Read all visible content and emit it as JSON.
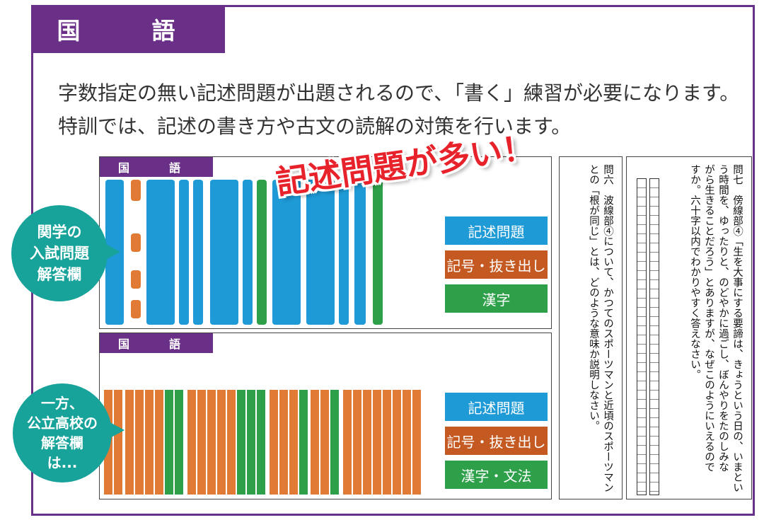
{
  "header": {
    "title": "国　語"
  },
  "intro": {
    "line1": "字数指定の無い記述問題が出題されるので､「書く」練習が必要になります。",
    "line2": "特訓では、記述の書き方や古文の読解の対策を行います。"
  },
  "banner": "記述問題が多い！",
  "callouts": {
    "kangaku": "関学の\n入試問題\n解答欄",
    "public": "一方、\n公立高校の\n解答欄\nは..."
  },
  "sheet_top": {
    "tab": "国　語",
    "legend": [
      "記述問題",
      "記号・抜き出し",
      "漢字"
    ]
  },
  "sheet_bottom": {
    "tab": "国　語",
    "legend": [
      "記述問題",
      "記号・抜き出し",
      "漢字・文法"
    ]
  },
  "question6": {
    "text": "問六　波線部④について、かつてのスポーツマンと近頃のスポーツマン\nとの「根が同じ」とは、どのような意味か説明しなさい。"
  },
  "question7": {
    "text": "問七　傍線部④「生を大事にする要諦は、きょうという日の、いまとい\nう時間を、ゆったりと、のどやかに過ごし、ぼんやりをたのしみな\nがら生きることだろう」とありますが、なぜこのようにいえるので\nすか。六十字以内でわかりやすく答えなさい。"
  },
  "colors": {
    "purple": "#6a2f86",
    "blue": "#1e9ad6",
    "orange": "#e07a35",
    "green": "#2ea04a",
    "teal": "#17a39a",
    "red": "#e8222a"
  }
}
